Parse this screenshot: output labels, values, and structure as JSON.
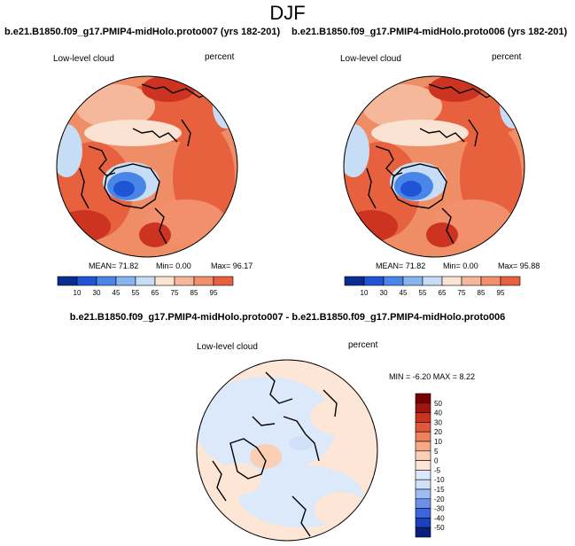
{
  "page": {
    "title": "DJF"
  },
  "colors": {
    "palette": [
      "#0a2b8f",
      "#1f55d4",
      "#4a86e8",
      "#8ab4f0",
      "#c7dcf5",
      "#fbe3d4",
      "#f6b89b",
      "#f2906e",
      "#e8613f",
      "#cc3320",
      "#9c1010",
      "#6e0000"
    ],
    "diff_palette": [
      "#0a1f7a",
      "#1b3fbf",
      "#3a66dd",
      "#6a90ea",
      "#9fbbf2",
      "#cfe0f8",
      "#dbe9fa",
      "#fde6d6",
      "#fbcfb3",
      "#f6ab87",
      "#ef825c",
      "#e2573a",
      "#c8341f",
      "#a01510",
      "#760000"
    ]
  },
  "chart_data": [
    {
      "type": "heatmap",
      "projection": "polar",
      "title": "b.e21.B1850.f09_g17.PMIP4-midHolo.proto007 (yrs 182-201)",
      "left_label": "Low-level cloud",
      "right_label": "percent",
      "stats": {
        "mean": "MEAN=  71.82",
        "min": "Min=   0.00",
        "max": "Max=  96.17"
      },
      "colorbar_levels": [
        "10",
        "30",
        "45",
        "55",
        "65",
        "75",
        "85",
        "95"
      ],
      "legend": "bottom"
    },
    {
      "type": "heatmap",
      "projection": "polar",
      "title": "b.e21.B1850.f09_g17.PMIP4-midHolo.proto006 (yrs 182-201)",
      "left_label": "Low-level cloud",
      "right_label": "percent",
      "stats": {
        "mean": "MEAN=  71.82",
        "min": "Min=   0.00",
        "max": "Max=  95.88"
      },
      "colorbar_levels": [
        "10",
        "30",
        "45",
        "55",
        "65",
        "75",
        "85",
        "95"
      ],
      "legend": "bottom"
    },
    {
      "type": "heatmap",
      "projection": "polar",
      "title": "b.e21.B1850.f09_g17.PMIP4-midHolo.proto007 - b.e21.B1850.f09_g17.PMIP4-midHolo.proto006",
      "left_label": "Low-level cloud",
      "right_label": "percent",
      "stats": {
        "minmax": "MIN =  -6.20 MAX =   8.22"
      },
      "colorbar_levels": [
        "50",
        "40",
        "30",
        "20",
        "10",
        "5",
        "0",
        "-5",
        "-10",
        "-15",
        "-20",
        "-30",
        "-40",
        "-50"
      ],
      "legend": "right"
    }
  ]
}
